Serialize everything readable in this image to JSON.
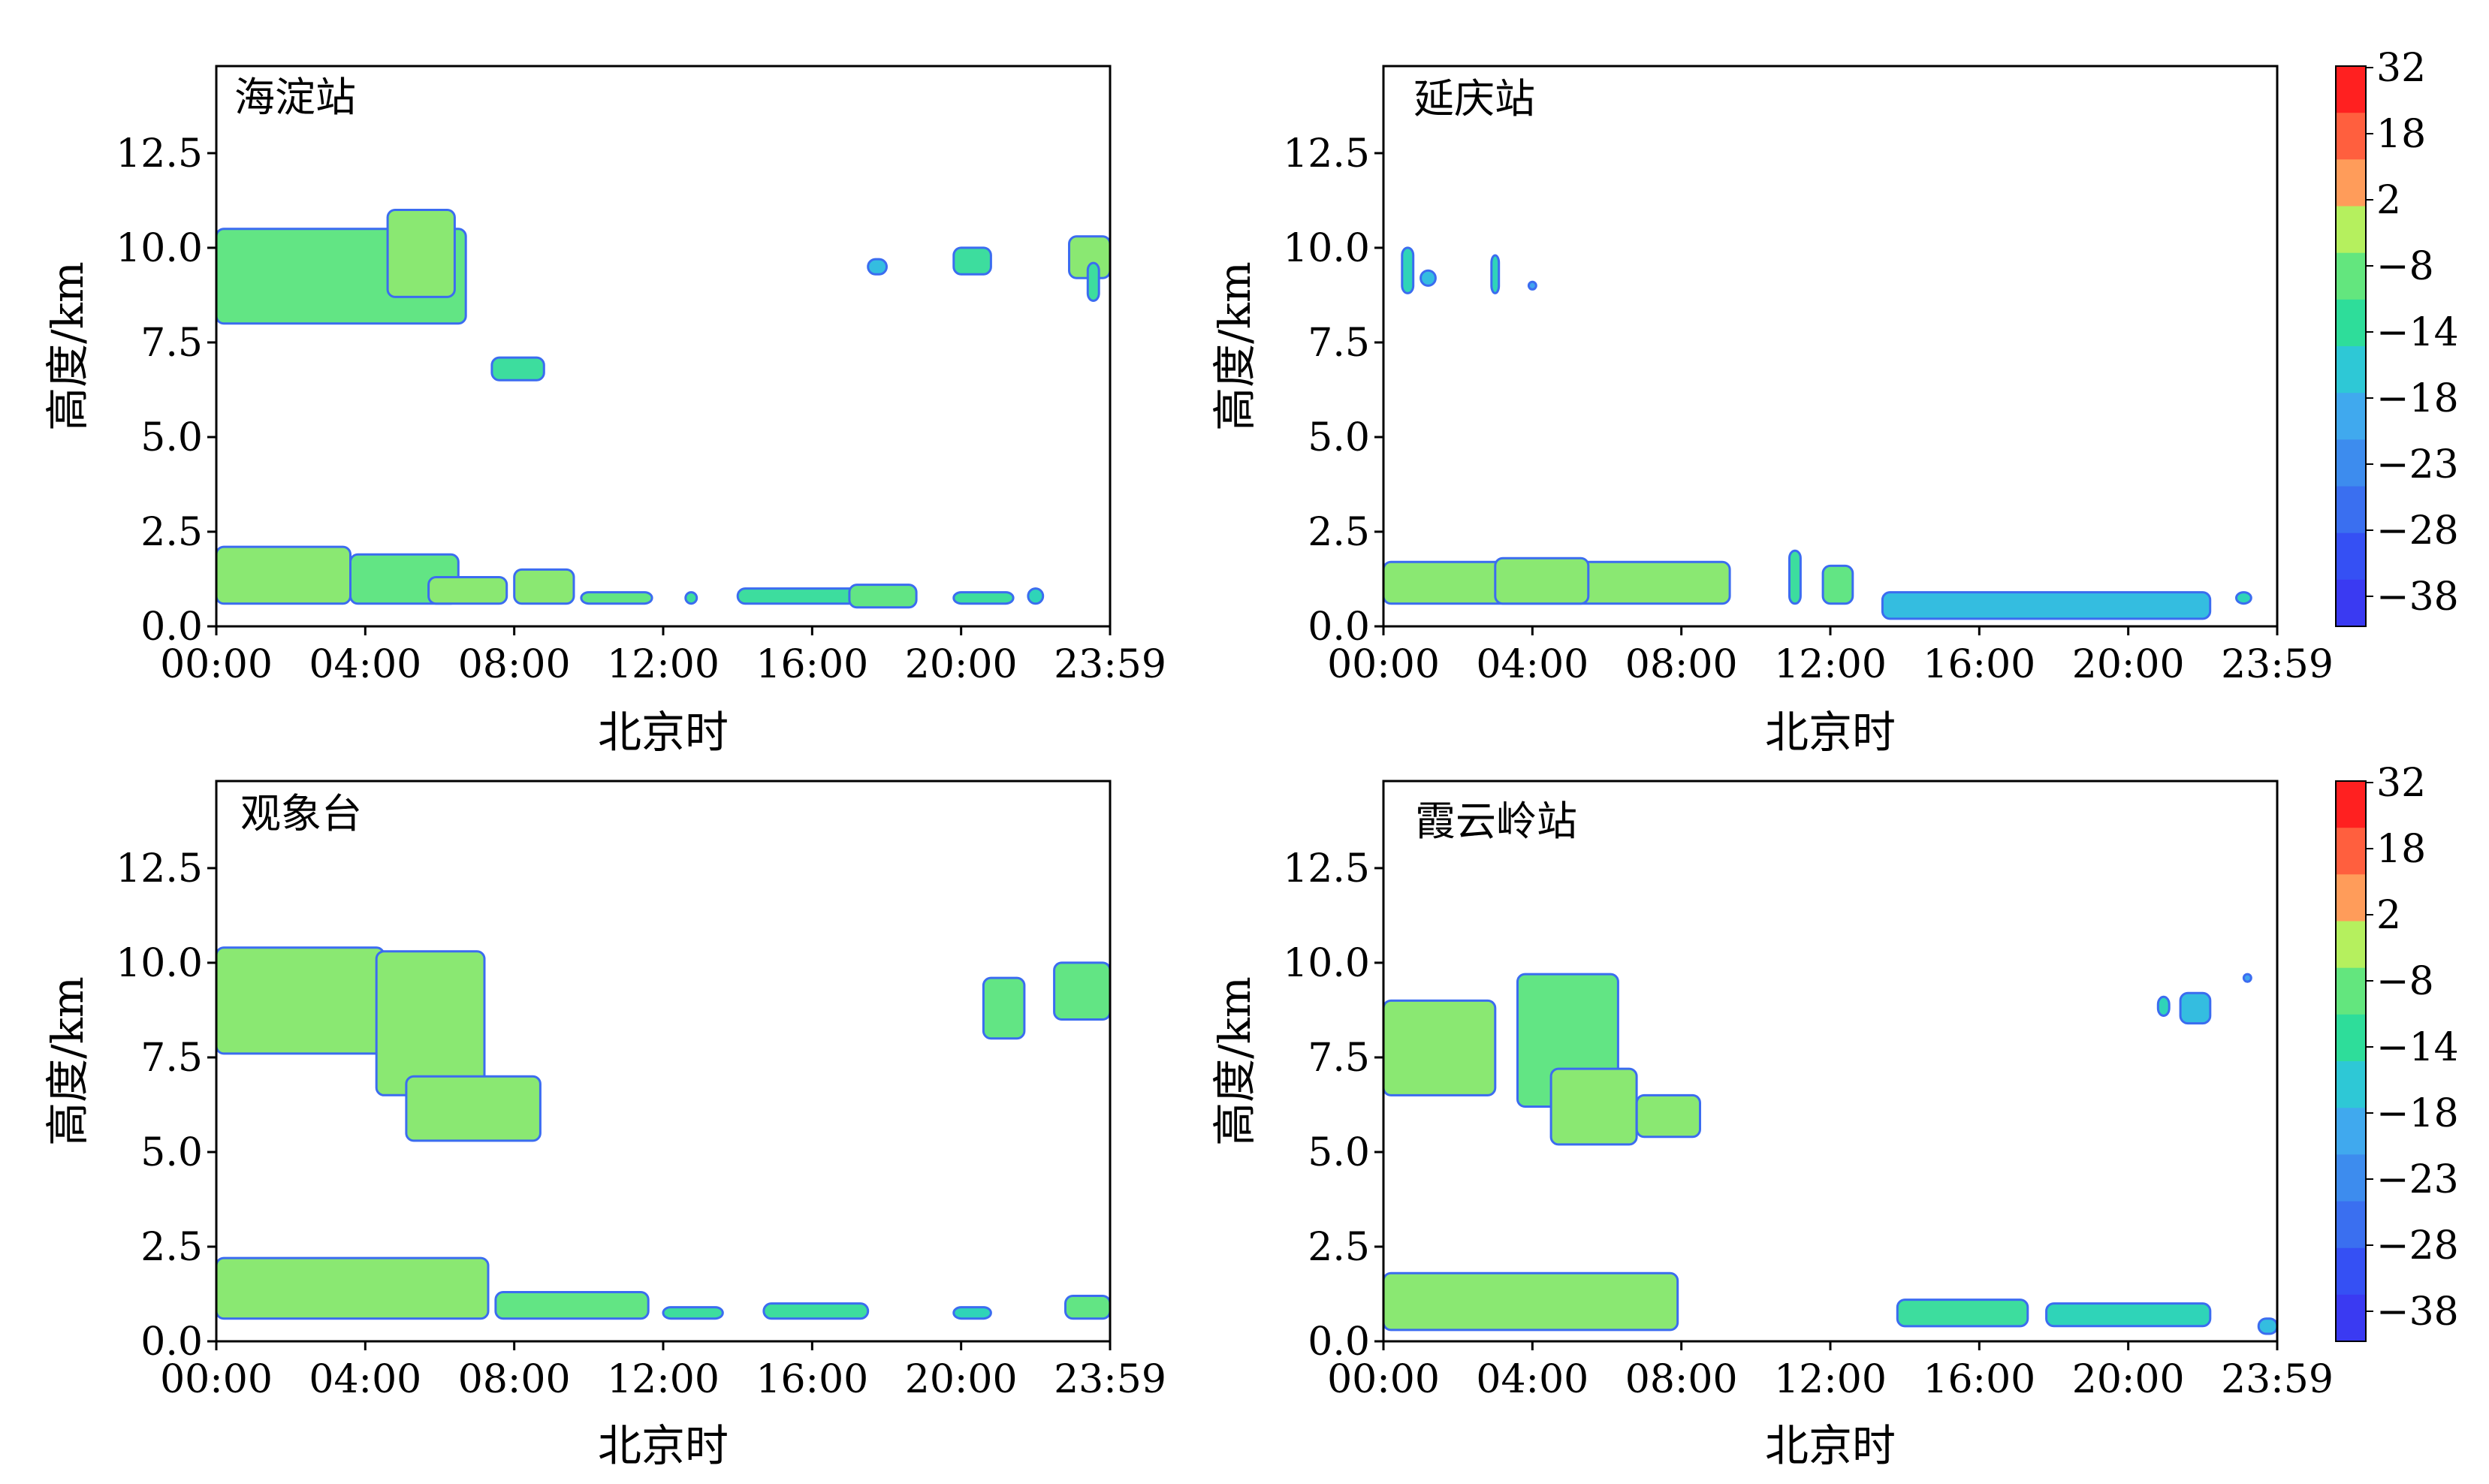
{
  "chart_data": {
    "type": "heatmap",
    "panels": [
      {
        "station": "海淀站",
        "xlabel": "北京时",
        "ylabel": "高度/km",
        "xticks": [
          "00:00",
          "04:00",
          "08:00",
          "12:00",
          "16:00",
          "20:00",
          "23:59"
        ],
        "yticks": [
          "0.0",
          "2.5",
          "5.0",
          "7.5",
          "10.0",
          "12.5"
        ],
        "xlim_hours": [
          0,
          24
        ],
        "ylim_km": [
          0,
          14.8
        ],
        "echo_regions": [
          {
            "t": [
              0.0,
              6.7
            ],
            "h": [
              8.0,
              10.5
            ],
            "v": -14
          },
          {
            "t": [
              4.6,
              6.4
            ],
            "h": [
              8.7,
              11.0
            ],
            "v": -12
          },
          {
            "t": [
              7.4,
              8.8
            ],
            "h": [
              6.5,
              7.1
            ],
            "v": -16
          },
          {
            "t": [
              17.5,
              18.0
            ],
            "h": [
              9.3,
              9.7
            ],
            "v": -20
          },
          {
            "t": [
              19.8,
              20.8
            ],
            "h": [
              9.3,
              10.0
            ],
            "v": -16
          },
          {
            "t": [
              22.9,
              24.0
            ],
            "h": [
              9.2,
              10.3
            ],
            "v": -12
          },
          {
            "t": [
              23.4,
              23.7
            ],
            "h": [
              8.6,
              9.6
            ],
            "v": -16
          },
          {
            "t": [
              0.0,
              3.6
            ],
            "h": [
              0.6,
              2.1
            ],
            "v": -12
          },
          {
            "t": [
              3.6,
              6.5
            ],
            "h": [
              0.6,
              1.9
            ],
            "v": -14
          },
          {
            "t": [
              5.7,
              7.8
            ],
            "h": [
              0.6,
              1.3
            ],
            "v": -12
          },
          {
            "t": [
              8.0,
              9.6
            ],
            "h": [
              0.6,
              1.5
            ],
            "v": -12
          },
          {
            "t": [
              9.8,
              11.7
            ],
            "h": [
              0.6,
              0.9
            ],
            "v": -14
          },
          {
            "t": [
              12.6,
              12.9
            ],
            "h": [
              0.6,
              0.9
            ],
            "v": -16
          },
          {
            "t": [
              14.0,
              17.4
            ],
            "h": [
              0.6,
              1.0
            ],
            "v": -16
          },
          {
            "t": [
              17.0,
              18.8
            ],
            "h": [
              0.5,
              1.1
            ],
            "v": -14
          },
          {
            "t": [
              19.8,
              21.4
            ],
            "h": [
              0.6,
              0.9
            ],
            "v": -16
          },
          {
            "t": [
              21.8,
              22.2
            ],
            "h": [
              0.6,
              1.0
            ],
            "v": -18
          }
        ]
      },
      {
        "station": "延庆站",
        "xlabel": "北京时",
        "ylabel": "高度/km",
        "xticks": [
          "00:00",
          "04:00",
          "08:00",
          "12:00",
          "16:00",
          "20:00",
          "23:59"
        ],
        "yticks": [
          "0.0",
          "2.5",
          "5.0",
          "7.5",
          "10.0",
          "12.5"
        ],
        "xlim_hours": [
          0,
          24
        ],
        "ylim_km": [
          0,
          14.8
        ],
        "echo_regions": [
          {
            "t": [
              0.5,
              0.8
            ],
            "h": [
              8.8,
              10.0
            ],
            "v": -18
          },
          {
            "t": [
              1.0,
              1.4
            ],
            "h": [
              9.0,
              9.4
            ],
            "v": -20
          },
          {
            "t": [
              2.9,
              3.1
            ],
            "h": [
              8.8,
              9.8
            ],
            "v": -18
          },
          {
            "t": [
              3.9,
              4.1
            ],
            "h": [
              8.9,
              9.1
            ],
            "v": -22
          },
          {
            "t": [
              0.0,
              9.3
            ],
            "h": [
              0.6,
              1.7
            ],
            "v": -12
          },
          {
            "t": [
              3.0,
              5.5
            ],
            "h": [
              0.6,
              1.8
            ],
            "v": -10
          },
          {
            "t": [
              10.9,
              11.2
            ],
            "h": [
              0.6,
              2.0
            ],
            "v": -16
          },
          {
            "t": [
              11.8,
              12.6
            ],
            "h": [
              0.6,
              1.6
            ],
            "v": -14
          },
          {
            "t": [
              13.4,
              22.2
            ],
            "h": [
              0.2,
              0.9
            ],
            "v": -20
          },
          {
            "t": [
              22.9,
              23.3
            ],
            "h": [
              0.6,
              0.9
            ],
            "v": -18
          }
        ]
      },
      {
        "station": "观象台",
        "xlabel": "北京时",
        "ylabel": "高度/km",
        "xticks": [
          "00:00",
          "04:00",
          "08:00",
          "12:00",
          "16:00",
          "20:00",
          "23:59"
        ],
        "yticks": [
          "0.0",
          "2.5",
          "5.0",
          "7.5",
          "10.0",
          "12.5"
        ],
        "xlim_hours": [
          0,
          24
        ],
        "ylim_km": [
          0,
          14.8
        ],
        "echo_regions": [
          {
            "t": [
              0.0,
              4.5
            ],
            "h": [
              7.6,
              10.4
            ],
            "v": -12
          },
          {
            "t": [
              4.3,
              7.2
            ],
            "h": [
              6.5,
              10.3
            ],
            "v": -12
          },
          {
            "t": [
              5.1,
              8.7
            ],
            "h": [
              5.3,
              7.0
            ],
            "v": -12
          },
          {
            "t": [
              20.6,
              21.7
            ],
            "h": [
              8.0,
              9.6
            ],
            "v": -14
          },
          {
            "t": [
              22.5,
              24.0
            ],
            "h": [
              8.5,
              10.0
            ],
            "v": -14
          },
          {
            "t": [
              0.0,
              7.3
            ],
            "h": [
              0.6,
              2.2
            ],
            "v": -10
          },
          {
            "t": [
              7.5,
              11.6
            ],
            "h": [
              0.6,
              1.3
            ],
            "v": -14
          },
          {
            "t": [
              12.0,
              13.6
            ],
            "h": [
              0.6,
              0.9
            ],
            "v": -16
          },
          {
            "t": [
              14.7,
              17.5
            ],
            "h": [
              0.6,
              1.0
            ],
            "v": -16
          },
          {
            "t": [
              19.8,
              20.8
            ],
            "h": [
              0.6,
              0.9
            ],
            "v": -18
          },
          {
            "t": [
              22.8,
              24.0
            ],
            "h": [
              0.6,
              1.2
            ],
            "v": -14
          }
        ]
      },
      {
        "station": "霞云岭站",
        "xlabel": "北京时",
        "ylabel": "高度/km",
        "xticks": [
          "00:00",
          "04:00",
          "08:00",
          "12:00",
          "16:00",
          "20:00",
          "23:59"
        ],
        "yticks": [
          "0.0",
          "2.5",
          "5.0",
          "7.5",
          "10.0",
          "12.5"
        ],
        "xlim_hours": [
          0,
          24
        ],
        "ylim_km": [
          0,
          14.8
        ],
        "echo_regions": [
          {
            "t": [
              0.0,
              3.0
            ],
            "h": [
              6.5,
              9.0
            ],
            "v": -12
          },
          {
            "t": [
              3.6,
              6.3
            ],
            "h": [
              6.2,
              9.7
            ],
            "v": -14
          },
          {
            "t": [
              4.5,
              6.8
            ],
            "h": [
              5.2,
              7.2
            ],
            "v": -12
          },
          {
            "t": [
              6.8,
              8.5
            ],
            "h": [
              5.4,
              6.5
            ],
            "v": -12
          },
          {
            "t": [
              20.8,
              21.1
            ],
            "h": [
              8.6,
              9.1
            ],
            "v": -18
          },
          {
            "t": [
              21.4,
              22.2
            ],
            "h": [
              8.4,
              9.2
            ],
            "v": -20
          },
          {
            "t": [
              23.1,
              23.3
            ],
            "h": [
              9.5,
              9.7
            ],
            "v": -22
          },
          {
            "t": [
              0.0,
              7.9
            ],
            "h": [
              0.3,
              1.8
            ],
            "v": -10
          },
          {
            "t": [
              13.8,
              17.3
            ],
            "h": [
              0.4,
              1.1
            ],
            "v": -16
          },
          {
            "t": [
              17.8,
              22.2
            ],
            "h": [
              0.4,
              1.0
            ],
            "v": -18
          },
          {
            "t": [
              23.5,
              24.0
            ],
            "h": [
              0.2,
              0.6
            ],
            "v": -20
          }
        ]
      }
    ],
    "colorbar": {
      "ticks": [
        "32",
        "18",
        "2",
        "−8",
        "−14",
        "−18",
        "−23",
        "−28",
        "−38"
      ],
      "bands_top_to_bottom": [
        "#ff2020",
        "#ff5f3e",
        "#ff9c5a",
        "#b5f05e",
        "#63e67e",
        "#2edd9a",
        "#2ec8d6",
        "#40a9ee",
        "#3d8cee",
        "#3a6ff0",
        "#3550f4",
        "#3a3af2"
      ]
    }
  }
}
